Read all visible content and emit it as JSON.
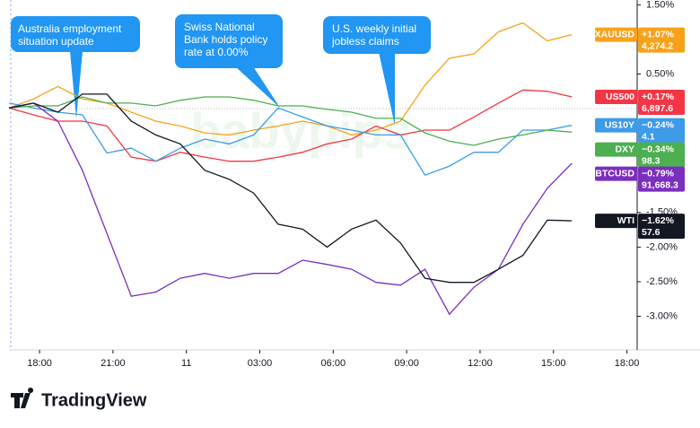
{
  "chart_data": {
    "type": "line",
    "x": [
      16.75,
      17.75,
      18.75,
      19.75,
      20.75,
      21.75,
      22.75,
      23.75,
      24.75,
      25.75,
      26.75,
      27.75,
      28.75,
      29.75,
      30.75,
      31.75,
      32.75,
      33.75,
      34.75,
      35.75,
      36.75,
      37.75,
      38.75,
      39.75
    ],
    "xlim": [
      16.75,
      42.42
    ],
    "xticks": [
      {
        "value": 18,
        "label": "18:00"
      },
      {
        "value": 21,
        "label": "21:00"
      },
      {
        "value": 24,
        "label": "11"
      },
      {
        "value": 27,
        "label": "03:00"
      },
      {
        "value": 30,
        "label": "06:00"
      },
      {
        "value": 33,
        "label": "09:00"
      },
      {
        "value": 36,
        "label": "12:00"
      },
      {
        "value": 39,
        "label": "15:00"
      },
      {
        "value": 42,
        "label": "18:00"
      }
    ],
    "ylim": [
      -3.46,
      1.57
    ],
    "yticks": [
      {
        "value": 1.5,
        "label": "1.50%"
      },
      {
        "value": 0.5,
        "label": "0.50%"
      },
      {
        "value": -1.5,
        "label": "-1.50%"
      },
      {
        "value": -2,
        "label": "-2.00%"
      },
      {
        "value": -2.5,
        "label": "-2.50%"
      },
      {
        "value": -3,
        "label": "-3.00%"
      }
    ],
    "series": [
      {
        "name": "XAUUSD",
        "color": "#f7a21b",
        "last_label": "+1.07%",
        "price": "4,274.2",
        "values": [
          0.01,
          0.14,
          0.32,
          0.14,
          0.08,
          -0.05,
          -0.18,
          -0.25,
          -0.35,
          -0.38,
          -0.31,
          -0.25,
          -0.18,
          -0.25,
          -0.38,
          -0.31,
          -0.18,
          0.34,
          0.73,
          0.79,
          1.11,
          1.24,
          0.98,
          1.07
        ]
      },
      {
        "name": "US500",
        "color": "#f23645",
        "last_label": "+0.17%",
        "price": "6,897.6",
        "values": [
          0.01,
          -0.09,
          -0.18,
          -0.18,
          -0.25,
          -0.7,
          -0.76,
          -0.63,
          -0.7,
          -0.76,
          -0.76,
          -0.7,
          -0.63,
          -0.51,
          -0.44,
          -0.25,
          -0.38,
          -0.31,
          -0.31,
          -0.12,
          0.08,
          0.27,
          0.25,
          0.17
        ]
      },
      {
        "name": "US10Y",
        "color": "#3d9be9",
        "last_label": "−0.24%",
        "price": "4.1",
        "values": [
          0.08,
          0.01,
          -0.05,
          -0.09,
          -0.64,
          -0.57,
          -0.76,
          -0.57,
          -0.44,
          -0.51,
          -0.38,
          0.01,
          -0.12,
          -0.25,
          -0.31,
          -0.38,
          -0.38,
          -0.96,
          -0.83,
          -0.63,
          -0.63,
          -0.31,
          -0.31,
          -0.24
        ]
      },
      {
        "name": "DXY",
        "color": "#4caf50",
        "last_label": "−0.34%",
        "price": "98.3",
        "values": [
          0.01,
          0.04,
          0.04,
          0.17,
          0.08,
          0.08,
          0.04,
          0.12,
          0.17,
          0.17,
          0.12,
          0.04,
          0.04,
          -0.01,
          -0.05,
          -0.14,
          -0.14,
          -0.35,
          -0.47,
          -0.53,
          -0.44,
          -0.38,
          -0.31,
          -0.34
        ]
      },
      {
        "name": "BTCUSD",
        "color": "#7b2fbe",
        "last_label": "−0.79%",
        "price": "91,668.3",
        "values": [
          0.01,
          0.08,
          -0.18,
          -0.89,
          -1.8,
          -2.71,
          -2.65,
          -2.45,
          -2.38,
          -2.45,
          -2.38,
          -2.38,
          -2.19,
          -2.25,
          -2.32,
          -2.51,
          -2.55,
          -2.32,
          -2.97,
          -2.58,
          -2.32,
          -1.67,
          -1.15,
          -0.79
        ]
      },
      {
        "name": "WTI",
        "color": "#131722",
        "last_label": "−1.62%",
        "price": "57.6",
        "values": [
          0.01,
          0.08,
          -0.05,
          0.21,
          0.21,
          -0.18,
          -0.38,
          -0.51,
          -0.89,
          -1.02,
          -1.22,
          -1.67,
          -1.74,
          -2.0,
          -1.74,
          -1.61,
          -1.94,
          -2.45,
          -2.51,
          -2.51,
          -2.32,
          -2.12,
          -1.61,
          -1.62
        ]
      }
    ],
    "annotations": [
      {
        "lines": [
          "Australia employment",
          "situation update"
        ]
      },
      {
        "lines": [
          "Swiss National",
          "Bank holds policy",
          "rate at 0.00%"
        ]
      },
      {
        "lines": [
          "U.S. weekly initial",
          "jobless claims"
        ]
      }
    ],
    "watermark": "babypips",
    "branding": "TradingView"
  }
}
